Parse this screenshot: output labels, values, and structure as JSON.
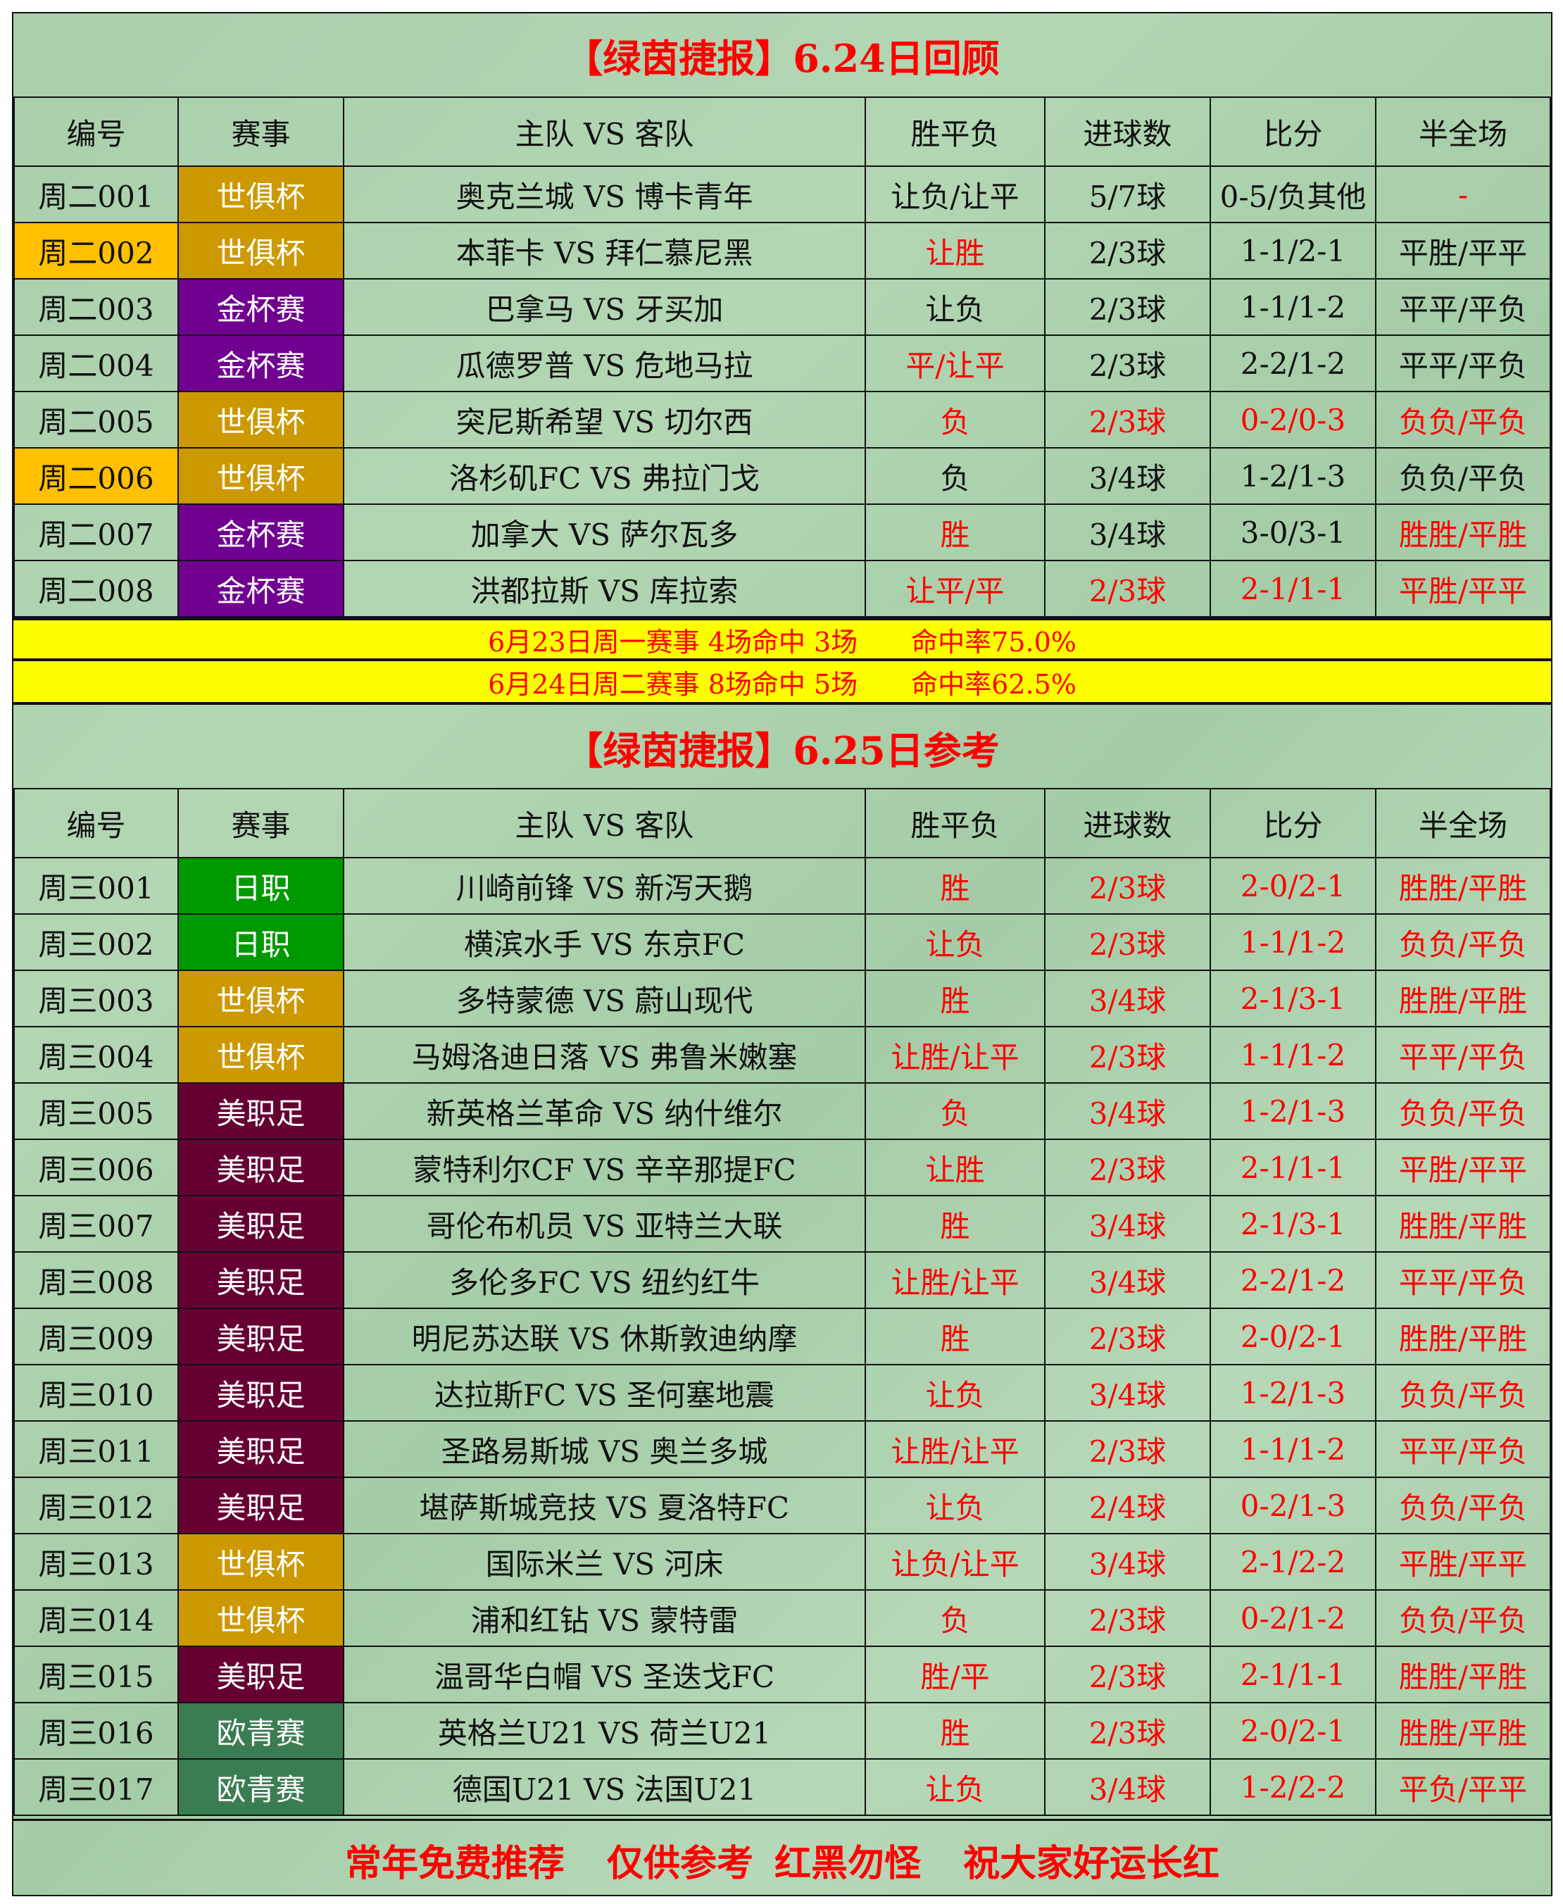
{
  "colors": {
    "red": "#ff0000",
    "highlight_id": "#ffc000",
    "summary_bg": "#ffff00",
    "世俱杯": "#cc9900",
    "金杯赛": "#700090",
    "日职": "#009900",
    "美职足": "#660033",
    "欧青赛": "#3b7d52"
  },
  "headers": [
    "编号",
    "赛事",
    "主队 VS 客队",
    "胜平负",
    "进球数",
    "比分",
    "半全场"
  ],
  "review": {
    "title": "【绿茵捷报】6.24日回顾",
    "rows": [
      {
        "id": "周二001",
        "comp": "世俱杯",
        "match": "奥克兰城 VS 博卡青年",
        "result": "让负/让平",
        "goals": "5/7球",
        "score": "0-5/负其他",
        "hf": "-",
        "hl": false,
        "red": [
          "hf"
        ]
      },
      {
        "id": "周二002",
        "comp": "世俱杯",
        "match": "本菲卡 VS 拜仁慕尼黑",
        "result": "让胜",
        "goals": "2/3球",
        "score": "1-1/2-1",
        "hf": "平胜/平平",
        "hl": true,
        "red": [
          "result"
        ]
      },
      {
        "id": "周二003",
        "comp": "金杯赛",
        "match": "巴拿马 VS 牙买加",
        "result": "让负",
        "goals": "2/3球",
        "score": "1-1/1-2",
        "hf": "平平/平负",
        "hl": false,
        "red": []
      },
      {
        "id": "周二004",
        "comp": "金杯赛",
        "match": "瓜德罗普 VS 危地马拉",
        "result": "平/让平",
        "goals": "2/3球",
        "score": "2-2/1-2",
        "hf": "平平/平负",
        "hl": false,
        "red": [
          "result"
        ]
      },
      {
        "id": "周二005",
        "comp": "世俱杯",
        "match": "突尼斯希望 VS 切尔西",
        "result": "负",
        "goals": "2/3球",
        "score": "0-2/0-3",
        "hf": "负负/平负",
        "hl": false,
        "red": [
          "result",
          "goals",
          "score",
          "hf"
        ]
      },
      {
        "id": "周二006",
        "comp": "世俱杯",
        "match": "洛杉矶FC VS 弗拉门戈",
        "result": "负",
        "goals": "3/4球",
        "score": "1-2/1-3",
        "hf": "负负/平负",
        "hl": true,
        "red": []
      },
      {
        "id": "周二007",
        "comp": "金杯赛",
        "match": "加拿大 VS 萨尔瓦多",
        "result": "胜",
        "goals": "3/4球",
        "score": "3-0/3-1",
        "hf": "胜胜/平胜",
        "hl": false,
        "red": [
          "result",
          "hf"
        ]
      },
      {
        "id": "周二008",
        "comp": "金杯赛",
        "match": "洪都拉斯 VS 库拉索",
        "result": "让平/平",
        "goals": "2/3球",
        "score": "2-1/1-1",
        "hf": "平胜/平平",
        "hl": false,
        "red": [
          "result",
          "goals",
          "score",
          "hf"
        ]
      }
    ]
  },
  "summary": [
    "6月23日周一赛事 4场命中 3场　　命中率75.0%",
    "6月24日周二赛事 8场命中 5场　　命中率62.5%"
  ],
  "preview": {
    "title": "【绿茵捷报】6.25日参考",
    "rows": [
      {
        "id": "周三001",
        "comp": "日职",
        "match": "川崎前锋 VS 新泻天鹅",
        "result": "胜",
        "goals": "2/3球",
        "score": "2-0/2-1",
        "hf": "胜胜/平胜"
      },
      {
        "id": "周三002",
        "comp": "日职",
        "match": "横滨水手 VS 东京FC",
        "result": "让负",
        "goals": "2/3球",
        "score": "1-1/1-2",
        "hf": "负负/平负"
      },
      {
        "id": "周三003",
        "comp": "世俱杯",
        "match": "多特蒙德 VS 蔚山现代",
        "result": "胜",
        "goals": "3/4球",
        "score": "2-1/3-1",
        "hf": "胜胜/平胜"
      },
      {
        "id": "周三004",
        "comp": "世俱杯",
        "match": "马姆洛迪日落 VS 弗鲁米嫩塞",
        "result": "让胜/让平",
        "goals": "2/3球",
        "score": "1-1/1-2",
        "hf": "平平/平负"
      },
      {
        "id": "周三005",
        "comp": "美职足",
        "match": "新英格兰革命 VS 纳什维尔",
        "result": "负",
        "goals": "3/4球",
        "score": "1-2/1-3",
        "hf": "负负/平负"
      },
      {
        "id": "周三006",
        "comp": "美职足",
        "match": "蒙特利尔CF VS 辛辛那提FC",
        "result": "让胜",
        "goals": "2/3球",
        "score": "2-1/1-1",
        "hf": "平胜/平平"
      },
      {
        "id": "周三007",
        "comp": "美职足",
        "match": "哥伦布机员 VS 亚特兰大联",
        "result": "胜",
        "goals": "3/4球",
        "score": "2-1/3-1",
        "hf": "胜胜/平胜"
      },
      {
        "id": "周三008",
        "comp": "美职足",
        "match": "多伦多FC VS 纽约红牛",
        "result": "让胜/让平",
        "goals": "3/4球",
        "score": "2-2/1-2",
        "hf": "平平/平负"
      },
      {
        "id": "周三009",
        "comp": "美职足",
        "match": "明尼苏达联 VS 休斯敦迪纳摩",
        "result": "胜",
        "goals": "2/3球",
        "score": "2-0/2-1",
        "hf": "胜胜/平胜"
      },
      {
        "id": "周三010",
        "comp": "美职足",
        "match": "达拉斯FC VS 圣何塞地震",
        "result": "让负",
        "goals": "3/4球",
        "score": "1-2/1-3",
        "hf": "负负/平负"
      },
      {
        "id": "周三011",
        "comp": "美职足",
        "match": "圣路易斯城 VS 奥兰多城",
        "result": "让胜/让平",
        "goals": "2/3球",
        "score": "1-1/1-2",
        "hf": "平平/平负"
      },
      {
        "id": "周三012",
        "comp": "美职足",
        "match": "堪萨斯城竞技 VS 夏洛特FC",
        "result": "让负",
        "goals": "2/4球",
        "score": "0-2/1-3",
        "hf": "负负/平负"
      },
      {
        "id": "周三013",
        "comp": "世俱杯",
        "match": "国际米兰 VS 河床",
        "result": "让负/让平",
        "goals": "3/4球",
        "score": "2-1/2-2",
        "hf": "平胜/平平"
      },
      {
        "id": "周三014",
        "comp": "世俱杯",
        "match": "浦和红钻 VS 蒙特雷",
        "result": "负",
        "goals": "2/3球",
        "score": "0-2/1-2",
        "hf": "负负/平负"
      },
      {
        "id": "周三015",
        "comp": "美职足",
        "match": "温哥华白帽 VS 圣迭戈FC",
        "result": "胜/平",
        "goals": "2/3球",
        "score": "2-1/1-1",
        "hf": "胜胜/平胜"
      },
      {
        "id": "周三016",
        "comp": "欧青赛",
        "match": "英格兰U21 VS 荷兰U21",
        "result": "胜",
        "goals": "2/3球",
        "score": "2-0/2-1",
        "hf": "胜胜/平胜"
      },
      {
        "id": "周三017",
        "comp": "欧青赛",
        "match": "德国U21 VS 法国U21",
        "result": "让负",
        "goals": "3/4球",
        "score": "1-2/2-2",
        "hf": "平负/平平"
      }
    ]
  },
  "footer": [
    "常年免费推荐",
    "仅供参考",
    "红黑勿怪",
    "祝大家好运长红"
  ]
}
